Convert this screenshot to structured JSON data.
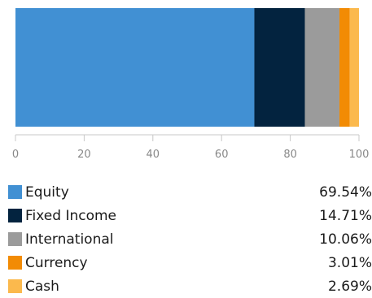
{
  "chart_data": {
    "type": "bar",
    "orientation": "horizontal",
    "stacked": true,
    "categories": [
      "Equity",
      "Fixed Income",
      "International",
      "Currency",
      "Cash"
    ],
    "values": [
      69.54,
      14.71,
      10.06,
      3.01,
      2.69
    ],
    "value_labels": [
      "69.54%",
      "14.71%",
      "10.06%",
      "3.01%",
      "2.69%"
    ],
    "colors": [
      "#4190d3",
      "#03233f",
      "#9b9b9b",
      "#f28b04",
      "#fbb94d"
    ],
    "xlim": [
      0,
      100
    ],
    "xticks": [
      0,
      20,
      40,
      60,
      80,
      100
    ],
    "xtick_labels": [
      "0",
      "20",
      "40",
      "60",
      "80",
      "100"
    ],
    "grid": false,
    "legend_placement": "bottom",
    "title": "",
    "xlabel": "",
    "ylabel": ""
  }
}
